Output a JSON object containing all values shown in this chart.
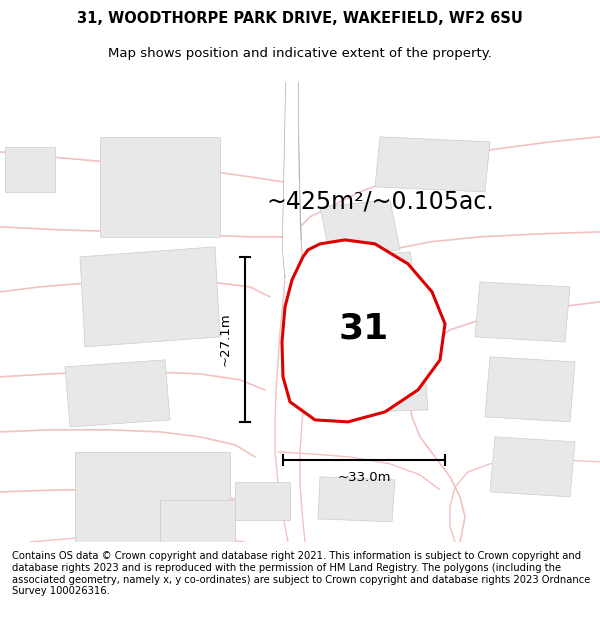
{
  "title_line1": "31, WOODTHORPE PARK DRIVE, WAKEFIELD, WF2 6SU",
  "title_line2": "Map shows position and indicative extent of the property.",
  "footer_text": "Contains OS data © Crown copyright and database right 2021. This information is subject to Crown copyright and database rights 2023 and is reproduced with the permission of HM Land Registry. The polygons (including the associated geometry, namely x, y co-ordinates) are subject to Crown copyright and database rights 2023 Ordnance Survey 100026316.",
  "area_label": "~425m²/~0.105ac.",
  "number_label": "31",
  "dim_horiz": "~33.0m",
  "dim_vert": "~27.1m",
  "map_bg": "#ffffff",
  "road_color": "#f5c0c0",
  "road_fill": "#ffffff",
  "building_color": "#e8e8e8",
  "building_edge": "#cccccc",
  "plot_fill": "#ffffff",
  "plot_edge": "#dd0000",
  "plot_edge_width": 2.2,
  "title_fontsize": 10.5,
  "subtitle_fontsize": 9.5,
  "area_fontsize": 17,
  "number_fontsize": 26,
  "footer_fontsize": 7.2,
  "dim_fontsize": 9.5
}
